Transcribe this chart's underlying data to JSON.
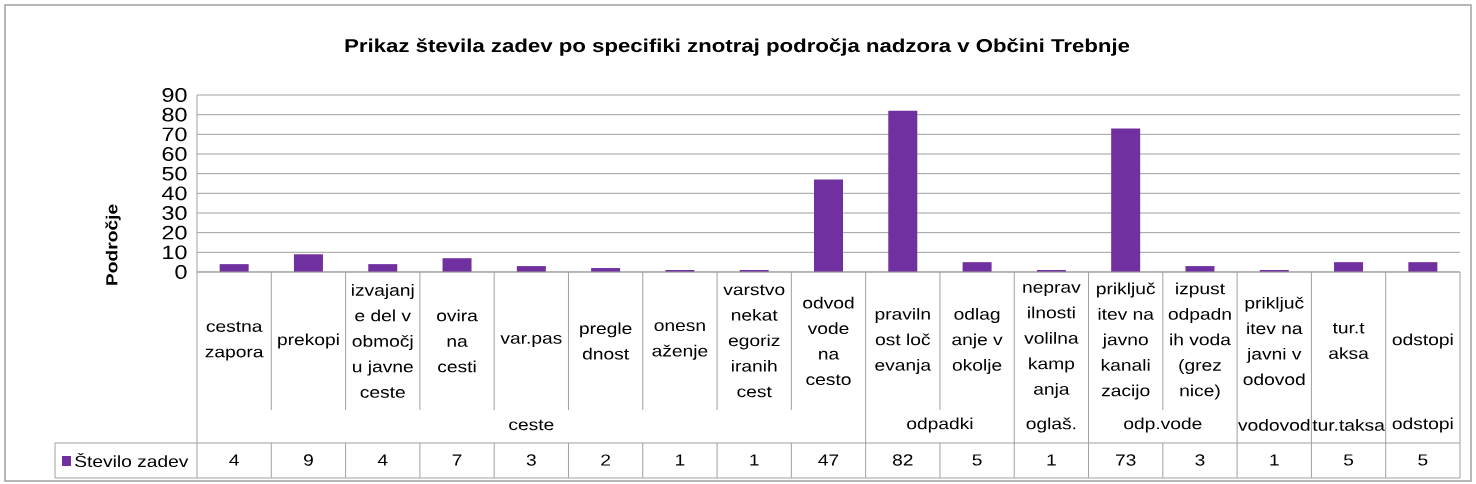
{
  "chart_data": {
    "type": "bar",
    "title": "Prikaz števila zadev po specifiki znotraj področja nadzora v Občini Trebnje",
    "ylabel": "Področje",
    "categories": [
      "cestna zapora",
      "prekopi",
      "izvajanje del v območju javne ceste",
      "ovira na cesti",
      "var.pas",
      "preglednost",
      "onesnaženje",
      "varstvo nekategoriziranih cest",
      "odvod vode na cesto",
      "pravilnost ločevanja",
      "odlaganje v okolje",
      "nepravilnosti volilna kampanja",
      "priključitev na javno kanalizacijo",
      "izpust odpadnih voda (greznice)",
      "priključitev na javni vodovod",
      "tur.taksa",
      "odstopi"
    ],
    "series": [
      {
        "name": "Število zadev",
        "color": "#7030a0",
        "values": [
          4,
          9,
          4,
          7,
          3,
          2,
          1,
          1,
          47,
          82,
          5,
          1,
          73,
          3,
          1,
          5,
          5
        ]
      }
    ],
    "ylim": [
      0,
      90
    ],
    "yticks": [
      0,
      10,
      20,
      30,
      40,
      50,
      60,
      70,
      80,
      90
    ],
    "grid": "y",
    "legend": "bottom left",
    "data_labels": true,
    "annotations": [
      "ceste",
      "odpadki",
      "oglaš.",
      "odp.vode",
      "vodovod",
      "tur.taksa",
      "odstopi"
    ]
  }
}
